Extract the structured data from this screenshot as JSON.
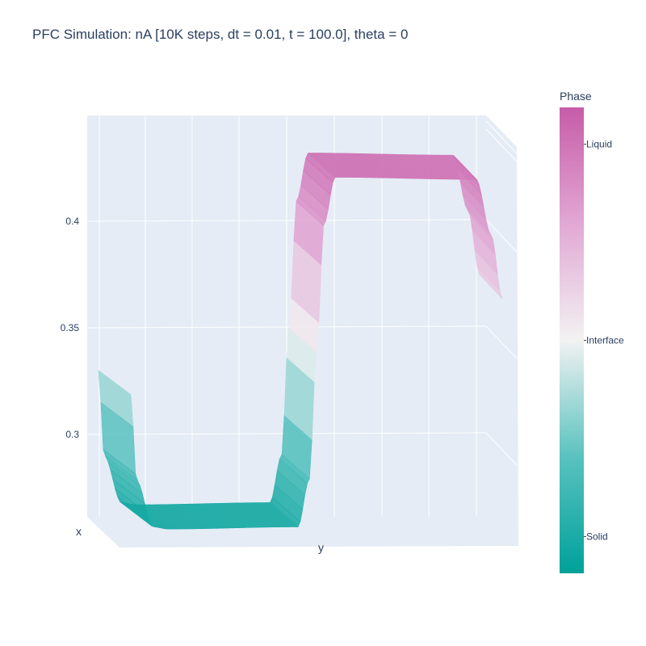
{
  "chart_data": {
    "type": "surface",
    "title": "PFC Simulation: nA [10K steps, dt = 0.01, t = 100.0], theta = 0",
    "axes": {
      "x_label": "x",
      "y_label": "y",
      "z_label": ""
    },
    "z_ticks": [
      "0.3",
      "0.35",
      "0.4"
    ],
    "z_range": [
      0.262,
      0.44
    ],
    "profile": {
      "y_fraction": [
        0.0,
        0.015,
        0.06,
        0.1,
        0.45,
        0.48,
        0.5,
        0.52,
        0.55,
        0.93,
        0.97,
        1.0
      ],
      "z": [
        0.33,
        0.29,
        0.268,
        0.267,
        0.268,
        0.29,
        0.35,
        0.41,
        0.432,
        0.431,
        0.405,
        0.375
      ]
    },
    "colorbar": {
      "title": "Phase",
      "ticks": [
        {
          "label": "Liquid",
          "value": 0.43
        },
        {
          "label": "Interface",
          "value": 0.35
        },
        {
          "label": "Solid",
          "value": 0.27
        }
      ],
      "colorscale": [
        [
          "0.0",
          "#00a19a"
        ],
        [
          "0.25",
          "#59c2bf"
        ],
        [
          "0.5",
          "#f2f2f2"
        ],
        [
          "0.75",
          "#e1a8d4"
        ],
        [
          "1.0",
          "#c75ca8"
        ]
      ],
      "range": [
        0.255,
        0.445
      ]
    },
    "colors": {
      "scene_bg": "#e5ecf6",
      "grid": "#ffffff"
    }
  }
}
